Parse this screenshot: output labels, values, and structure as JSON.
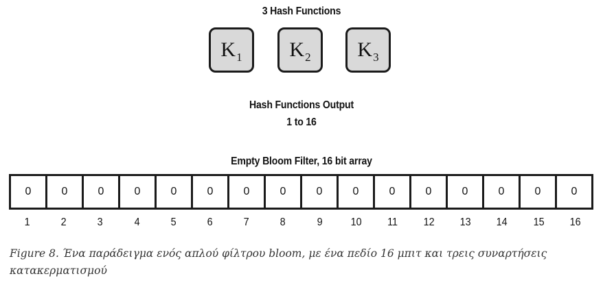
{
  "hash_title": "3 Hash Functions",
  "hash_functions": [
    {
      "letter": "K",
      "sub": "1"
    },
    {
      "letter": "K",
      "sub": "2"
    },
    {
      "letter": "K",
      "sub": "3"
    }
  ],
  "output_title_line1": "Hash Functions Output",
  "output_title_line2": "1 to 16",
  "filter_title": "Empty Bloom Filter, 16 bit array",
  "bits": [
    "0",
    "0",
    "0",
    "0",
    "0",
    "0",
    "0",
    "0",
    "0",
    "0",
    "0",
    "0",
    "0",
    "0",
    "0",
    "0"
  ],
  "indices": [
    "1",
    "2",
    "3",
    "4",
    "5",
    "6",
    "7",
    "8",
    "9",
    "10",
    "11",
    "12",
    "13",
    "14",
    "15",
    "16"
  ],
  "caption": "Figure 8. Ένα παράδειγμα ενός απλού φίλτρου bloom, με ένα πεδίο 16 μπιτ και τρεις συναρτήσεις κατακερματισμού",
  "colors": {
    "key_fill": "#d9d9d9",
    "stroke": "#1a1a1a",
    "caption_text": "#333333"
  }
}
